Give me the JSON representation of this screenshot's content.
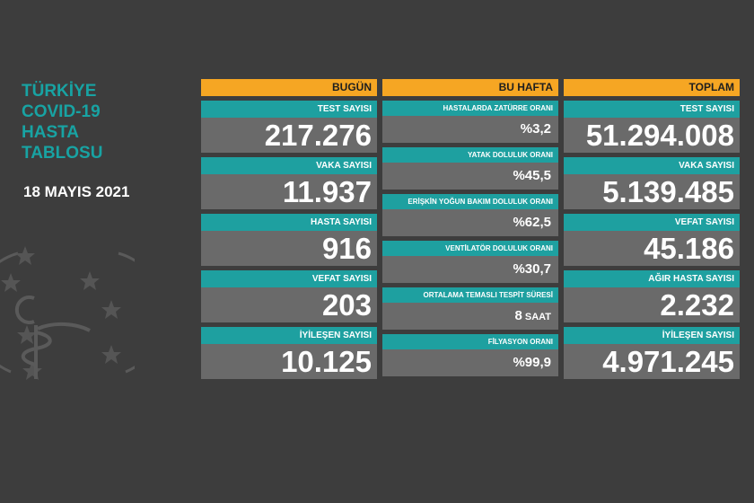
{
  "colors": {
    "background": "#3d3d3d",
    "header": "#f6a623",
    "label": "#1ea0a0",
    "value_bg": "#6a6a6a",
    "title": "#18a3a3"
  },
  "title_lines": [
    "TÜRKİYE",
    "COVID-19",
    "HASTA",
    "TABLOSU"
  ],
  "date": "18 MAYIS 2021",
  "emblem_icon": "ministry-of-health-emblem-icon",
  "today": {
    "header": "BUGÜN",
    "items": [
      {
        "label": "TEST SAYISI",
        "value": "217.276"
      },
      {
        "label": "VAKA SAYISI",
        "value": "11.937"
      },
      {
        "label": "HASTA SAYISI",
        "value": "916"
      },
      {
        "label": "VEFAT SAYISI",
        "value": "203"
      },
      {
        "label": "İYİLEŞEN SAYISI",
        "value": "10.125"
      }
    ]
  },
  "week": {
    "header": "BU HAFTA",
    "items": [
      {
        "label": "HASTALARDA ZATÜRRE ORANI",
        "value": "%3,2",
        "unit": ""
      },
      {
        "label": "YATAK DOLULUK ORANI",
        "value": "%45,5",
        "unit": ""
      },
      {
        "label": "ERİŞKİN YOĞUN BAKIM DOLULUK ORANI",
        "value": "%62,5",
        "unit": ""
      },
      {
        "label": "VENTİLATÖR DOLULUK ORANI",
        "value": "%30,7",
        "unit": ""
      },
      {
        "label": "ORTALAMA TEMASLI TESPİT SÜRESİ",
        "value": "8",
        "unit": "SAAT"
      },
      {
        "label": "FİLYASYON ORANI",
        "value": "%99,9",
        "unit": ""
      }
    ]
  },
  "total": {
    "header": "TOPLAM",
    "items": [
      {
        "label": "TEST SAYISI",
        "value": "51.294.008"
      },
      {
        "label": "VAKA SAYISI",
        "value": "5.139.485"
      },
      {
        "label": "VEFAT SAYISI",
        "value": "45.186"
      },
      {
        "label": "AĞIR HASTA SAYISI",
        "value": "2.232"
      },
      {
        "label": "İYİLEŞEN SAYISI",
        "value": "4.971.245"
      }
    ]
  }
}
